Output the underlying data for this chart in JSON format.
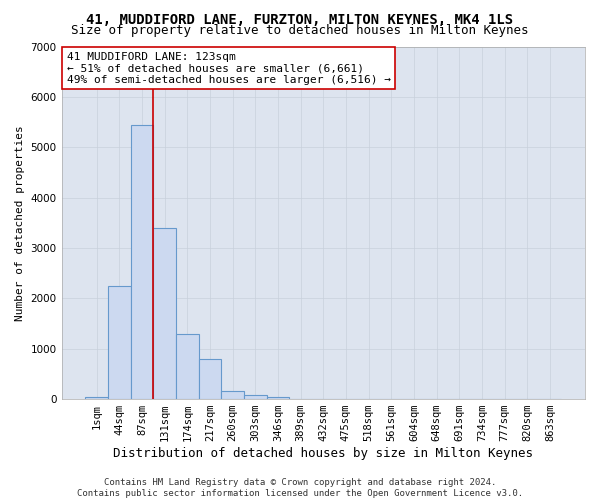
{
  "title": "41, MUDDIFORD LANE, FURZTON, MILTON KEYNES, MK4 1LS",
  "subtitle": "Size of property relative to detached houses in Milton Keynes",
  "xlabel": "Distribution of detached houses by size in Milton Keynes",
  "ylabel": "Number of detached properties",
  "footer_line1": "Contains HM Land Registry data © Crown copyright and database right 2024.",
  "footer_line2": "Contains public sector information licensed under the Open Government Licence v3.0.",
  "categories": [
    "1sqm",
    "44sqm",
    "87sqm",
    "131sqm",
    "174sqm",
    "217sqm",
    "260sqm",
    "303sqm",
    "346sqm",
    "389sqm",
    "432sqm",
    "475sqm",
    "518sqm",
    "561sqm",
    "604sqm",
    "648sqm",
    "691sqm",
    "734sqm",
    "777sqm",
    "820sqm",
    "863sqm"
  ],
  "values": [
    50,
    2250,
    5450,
    3400,
    1300,
    800,
    170,
    90,
    50,
    0,
    0,
    0,
    0,
    0,
    0,
    0,
    0,
    0,
    0,
    0,
    0
  ],
  "bar_color": "#ccd9f0",
  "bar_edgecolor": "#6699cc",
  "bar_linewidth": 0.8,
  "vline_x": 2.5,
  "vline_color": "#cc0000",
  "vline_linewidth": 1.2,
  "ylim": [
    0,
    7000
  ],
  "yticks": [
    0,
    1000,
    2000,
    3000,
    4000,
    5000,
    6000,
    7000
  ],
  "annotation_text": "41 MUDDIFORD LANE: 123sqm\n← 51% of detached houses are smaller (6,661)\n49% of semi-detached houses are larger (6,516) →",
  "annotation_box_color": "#ffffff",
  "annotation_box_edgecolor": "#cc0000",
  "grid_color": "#c8d0dc",
  "bg_color": "#dde4ef",
  "fig_bg_color": "#ffffff",
  "title_fontsize": 10,
  "subtitle_fontsize": 9,
  "xlabel_fontsize": 9,
  "ylabel_fontsize": 8,
  "tick_fontsize": 7.5,
  "annotation_fontsize": 8,
  "footer_fontsize": 6.5
}
